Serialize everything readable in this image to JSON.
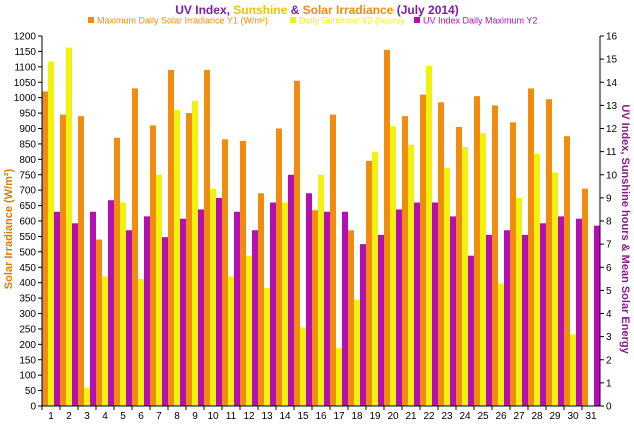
{
  "chart_data": {
    "type": "bar",
    "title": {
      "part1": "UV Index, ",
      "part2": "Sunshine",
      "part3": " & ",
      "part4": "Solar Irradiance",
      "part5": " (July 2014)"
    },
    "ylabel_left": "Solar Irradiance (W/m²)",
    "ylabel_right": "UV Index, Sunshine hours & Mean Solar Energy",
    "ylim_left": [
      0,
      1200
    ],
    "ylim_right": [
      0,
      16
    ],
    "yticks_left": [
      "0",
      "50",
      "100",
      "150",
      "200",
      "250",
      "300",
      "350",
      "400",
      "450",
      "500",
      "550",
      "600",
      "650",
      "700",
      "750",
      "800",
      "850",
      "900",
      "950",
      "1000",
      "1050",
      "1100",
      "1150",
      "1200"
    ],
    "yticks_right": [
      "0",
      "1",
      "2",
      "3",
      "4",
      "5",
      "6",
      "7",
      "8",
      "9",
      "10",
      "11",
      "12",
      "13",
      "14",
      "15",
      "16"
    ],
    "categories": [
      "1",
      "2",
      "3",
      "4",
      "5",
      "6",
      "7",
      "8",
      "9",
      "10",
      "11",
      "12",
      "13",
      "14",
      "15",
      "16",
      "17",
      "18",
      "19",
      "20",
      "21",
      "22",
      "23",
      "24",
      "25",
      "26",
      "27",
      "28",
      "29",
      "30",
      "31"
    ],
    "legend_position": "top",
    "grid": false,
    "series": [
      {
        "name": "Maximum Daily Solar Irradiance Y1 (W/m²)",
        "axis": "left",
        "color": "#F28C0F",
        "values": [
          1020,
          945,
          940,
          540,
          870,
          1030,
          910,
          1090,
          950,
          1090,
          865,
          860,
          690,
          900,
          1055,
          635,
          945,
          570,
          795,
          1155,
          940,
          1010,
          985,
          905,
          1005,
          975,
          920,
          1030,
          995,
          875,
          705
        ]
      },
      {
        "name": "Daily Sunshine Y2 (hours)",
        "axis": "right",
        "color": "#F2F20F",
        "values": [
          14.9,
          15.5,
          0.8,
          5.6,
          8.8,
          5.5,
          10.0,
          12.8,
          13.2,
          9.4,
          5.6,
          6.5,
          5.1,
          8.8,
          3.4,
          10.0,
          2.5,
          4.6,
          11.0,
          12.1,
          11.3,
          14.7,
          10.3,
          11.2,
          11.8,
          5.3,
          9.0,
          10.9,
          10.1,
          3.1,
          0
        ]
      },
      {
        "name": "UV Index Daily Maximum Y2",
        "axis": "right",
        "color": "#B30FB3",
        "values": [
          8.4,
          7.9,
          8.4,
          8.9,
          7.6,
          8.2,
          7.3,
          8.1,
          8.5,
          9.0,
          8.4,
          7.6,
          8.8,
          10.0,
          9.2,
          8.4,
          8.4,
          7.0,
          7.4,
          8.5,
          8.8,
          8.8,
          8.2,
          6.5,
          7.4,
          7.6,
          7.4,
          7.9,
          8.2,
          8.1,
          7.8
        ]
      }
    ]
  }
}
